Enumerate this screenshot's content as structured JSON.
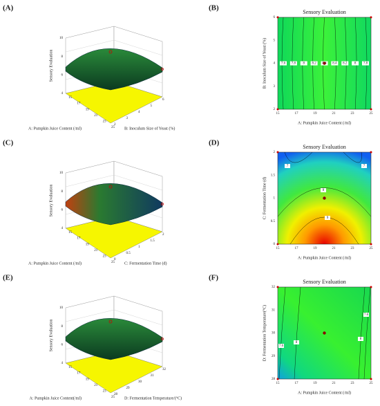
{
  "panels": [
    {
      "surface": {
        "label": "(A)",
        "z_axis_label": "Sensory Evaluation",
        "x_axis_label": "A: Pumpkin Juice Content (/ml)",
        "y_axis_label": "B: Inoculum Size of Yeast (%)",
        "z_ticks": [
          "10",
          "8",
          "6",
          "4"
        ],
        "x_ticks": [
          "15",
          "17",
          "19",
          "21",
          "23",
          "25"
        ],
        "y_ticks": [
          "2",
          "3",
          "4",
          "5",
          "6"
        ]
      },
      "contour": {
        "label": "(B)",
        "title": "Sensory Evaluation",
        "x_axis_label": "A: Pumpkin Juice Content (/ml)",
        "y_axis_label": "B: Inoculum Size of Yeast (%)",
        "x_ticks": [
          "15",
          "17",
          "19",
          "21",
          "23",
          "25"
        ],
        "y_ticks": [
          "2",
          "3",
          "4",
          "5",
          "6"
        ],
        "level_labels": [
          "7.6",
          "7.8",
          "8",
          "8.2",
          "8.4",
          "8.4",
          "8.2",
          "8",
          "7.8"
        ]
      }
    },
    {
      "surface": {
        "label": "(C)",
        "z_axis_label": "Sensory Evaluation",
        "x_axis_label": "A: Pumpkin Juice Content (/ml)",
        "y_axis_label": "C: Fermentation Time (d)",
        "z_ticks": [
          "10",
          "8",
          "6",
          "4"
        ],
        "x_ticks": [
          "15",
          "17",
          "19",
          "21",
          "23",
          "25"
        ],
        "y_ticks": [
          "0",
          "0.5",
          "1",
          "1.5",
          "2"
        ]
      },
      "contour": {
        "label": "(D)",
        "title": "Sensory Evaluation",
        "x_axis_label": "A: Pumpkin Juice Content (/ml)",
        "y_axis_label": "C: Fermentation Time (d)",
        "x_ticks": [
          "15",
          "17",
          "19",
          "21",
          "23",
          "25"
        ],
        "y_ticks": [
          "0",
          "0.5",
          "1",
          "1.5",
          "2"
        ],
        "level_labels": [
          "7",
          "7",
          "8",
          "9"
        ]
      }
    },
    {
      "surface": {
        "label": "(E)",
        "z_axis_label": "Sensory Evaluation",
        "x_axis_label": "A: Pumpkin Juice Content(/ml)",
        "y_axis_label": "D: Fermentation Temperature/(°C)",
        "z_ticks": [
          "10",
          "8",
          "6",
          "4"
        ],
        "x_ticks": [
          "15",
          "17",
          "19",
          "21",
          "23",
          "25"
        ],
        "y_ticks": [
          "28",
          "29",
          "30",
          "31",
          "32"
        ]
      },
      "contour": {
        "label": "(F)",
        "title": "Sensory Evaluation",
        "x_axis_label": "A: Pumpkin Juice Content (/ml)",
        "y_axis_label": "D: Fermentation Temperature(°C)",
        "x_ticks": [
          "15",
          "17",
          "19",
          "21",
          "23",
          "25"
        ],
        "y_ticks": [
          "28",
          "29",
          "30",
          "31",
          "32"
        ],
        "level_labels": [
          "7.6",
          "8",
          "8",
          "7.6"
        ]
      }
    }
  ]
}
